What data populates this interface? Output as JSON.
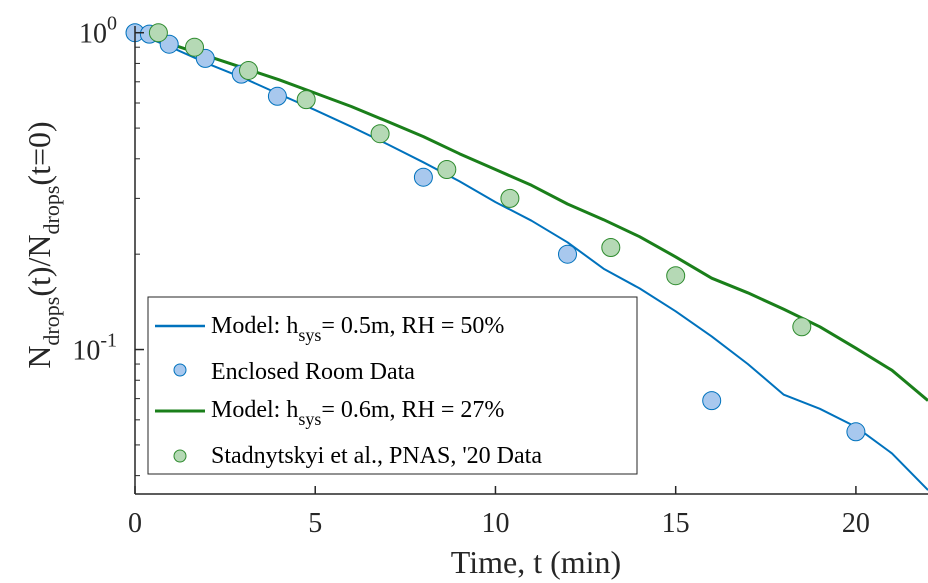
{
  "chart_data": {
    "type": "scatter",
    "xlabel": "Time, t (min)",
    "ylabel_parts": {
      "n1": "N",
      "sub1": "drops",
      "mid": "(t)/N",
      "sub2": "drops",
      "tail": "(t=0)"
    },
    "x_ticks": [
      "0",
      "5",
      "10",
      "15",
      "20"
    ],
    "x_tick_values": [
      0,
      5,
      10,
      15,
      20
    ],
    "y_ticks": [
      {
        "value": 1,
        "base": "10",
        "exp": "0"
      },
      {
        "value": 0.1,
        "base": "10",
        "exp": "-1"
      }
    ],
    "xlim": [
      0,
      22
    ],
    "ylim": [
      0.035,
      1.05
    ],
    "yscale": "log",
    "grid": false,
    "legend_position": "bottom-left",
    "series": [
      {
        "kind": "line",
        "color": "#0072BD",
        "legend": {
          "pre": "Model: h",
          "sub": "sys",
          "post": "= 0.5m, RH = 50%"
        },
        "x": [
          0,
          1,
          2,
          3,
          4,
          5,
          6,
          7,
          8,
          9,
          10,
          11,
          12,
          13,
          14,
          15,
          16,
          17,
          18,
          19,
          20,
          21,
          22
        ],
        "y": [
          1.0,
          0.9,
          0.8,
          0.72,
          0.64,
          0.57,
          0.505,
          0.445,
          0.39,
          0.34,
          0.292,
          0.255,
          0.218,
          0.18,
          0.156,
          0.132,
          0.11,
          0.09,
          0.072,
          0.065,
          0.057,
          0.047,
          0.036
        ]
      },
      {
        "kind": "scatter",
        "color": "#0072BD",
        "fill": "#A8C8EE",
        "legend": {
          "text": "Enclosed Room Data"
        },
        "x": [
          0,
          0.4,
          0.95,
          1.95,
          2.95,
          3.95,
          8.0,
          12.0,
          16.0,
          20.0
        ],
        "y": [
          1.0,
          0.99,
          0.92,
          0.83,
          0.74,
          0.63,
          0.35,
          0.2,
          0.069,
          0.055
        ]
      },
      {
        "kind": "line",
        "color": "#1A7F1A",
        "legend": {
          "pre": "Model: h",
          "sub": "sys",
          "post": "= 0.6m, RH = 27%"
        },
        "x": [
          0,
          1,
          2,
          3,
          4,
          5,
          6,
          7,
          8,
          9,
          10,
          11,
          12,
          13,
          14,
          15,
          16,
          17,
          18,
          19,
          20,
          21,
          22
        ],
        "y": [
          1.0,
          0.92,
          0.845,
          0.775,
          0.71,
          0.645,
          0.585,
          0.525,
          0.47,
          0.415,
          0.37,
          0.33,
          0.288,
          0.257,
          0.227,
          0.196,
          0.168,
          0.151,
          0.134,
          0.118,
          0.101,
          0.086,
          0.069
        ]
      },
      {
        "kind": "scatter",
        "color": "#2E8B2E",
        "fill": "#B5D9B5",
        "legend": {
          "text": "Stadnytskyi et al., PNAS, '20 Data"
        },
        "x": [
          0.65,
          1.65,
          3.15,
          4.75,
          6.8,
          8.65,
          10.4,
          13.2,
          15.0,
          18.5
        ],
        "y": [
          1.0,
          0.9,
          0.76,
          0.615,
          0.48,
          0.37,
          0.3,
          0.21,
          0.171,
          0.118
        ]
      }
    ]
  }
}
